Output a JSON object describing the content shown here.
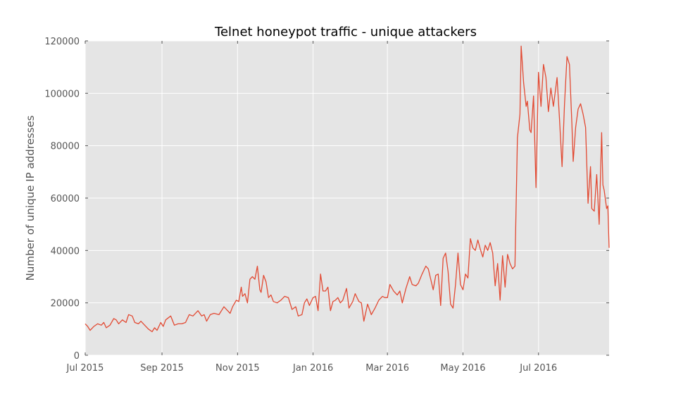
{
  "chart_data": {
    "type": "line",
    "title": "Telnet honeypot traffic - unique attackers",
    "xlabel": "",
    "ylabel": "Number of unique IP addresses",
    "x_range": [
      "2015-07-01",
      "2016-08-27"
    ],
    "x_tick_labels": [
      "Jul 2015",
      "Sep 2015",
      "Nov 2015",
      "Jan 2016",
      "Mar 2016",
      "May 2016",
      "Jul 2016"
    ],
    "x_tick_dates": [
      "2015-07-01",
      "2015-09-01",
      "2015-11-01",
      "2016-01-01",
      "2016-03-01",
      "2016-05-01",
      "2016-07-01"
    ],
    "y_ticks": [
      0,
      20000,
      40000,
      60000,
      80000,
      100000,
      120000
    ],
    "ylim": [
      0,
      120000
    ],
    "grid": true,
    "background": "#e5e5e5",
    "series": [
      {
        "color": "#e24a33",
        "points": [
          [
            "2015-07-01",
            12000
          ],
          [
            "2015-07-03",
            11000
          ],
          [
            "2015-07-05",
            9500
          ],
          [
            "2015-07-08",
            11000
          ],
          [
            "2015-07-11",
            12000
          ],
          [
            "2015-07-14",
            11500
          ],
          [
            "2015-07-16",
            12500
          ],
          [
            "2015-07-18",
            10500
          ],
          [
            "2015-07-21",
            11500
          ],
          [
            "2015-07-24",
            14000
          ],
          [
            "2015-07-26",
            13500
          ],
          [
            "2015-07-28",
            12000
          ],
          [
            "2015-07-31",
            13500
          ],
          [
            "2015-08-03",
            12500
          ],
          [
            "2015-08-05",
            15500
          ],
          [
            "2015-08-08",
            15000
          ],
          [
            "2015-08-10",
            12500
          ],
          [
            "2015-08-13",
            12000
          ],
          [
            "2015-08-15",
            13000
          ],
          [
            "2015-08-18",
            11500
          ],
          [
            "2015-08-21",
            10000
          ],
          [
            "2015-08-24",
            9000
          ],
          [
            "2015-08-26",
            10500
          ],
          [
            "2015-08-28",
            9500
          ],
          [
            "2015-08-31",
            12500
          ],
          [
            "2015-09-02",
            11000
          ],
          [
            "2015-09-04",
            13500
          ],
          [
            "2015-09-08",
            15000
          ],
          [
            "2015-09-11",
            11500
          ],
          [
            "2015-09-14",
            12000
          ],
          [
            "2015-09-17",
            12000
          ],
          [
            "2015-09-20",
            12500
          ],
          [
            "2015-09-23",
            15500
          ],
          [
            "2015-09-26",
            15000
          ],
          [
            "2015-09-30",
            17000
          ],
          [
            "2015-10-03",
            15000
          ],
          [
            "2015-10-05",
            15500
          ],
          [
            "2015-10-07",
            13000
          ],
          [
            "2015-10-10",
            15500
          ],
          [
            "2015-10-13",
            16000
          ],
          [
            "2015-10-17",
            15500
          ],
          [
            "2015-10-21",
            18500
          ],
          [
            "2015-10-24",
            17000
          ],
          [
            "2015-10-26",
            16000
          ],
          [
            "2015-10-28",
            18500
          ],
          [
            "2015-10-31",
            21000
          ],
          [
            "2015-11-02",
            20500
          ],
          [
            "2015-11-04",
            26000
          ],
          [
            "2015-11-05",
            22500
          ],
          [
            "2015-11-07",
            23500
          ],
          [
            "2015-11-09",
            20000
          ],
          [
            "2015-11-11",
            29000
          ],
          [
            "2015-11-13",
            30000
          ],
          [
            "2015-11-15",
            29000
          ],
          [
            "2015-11-17",
            34000
          ],
          [
            "2015-11-19",
            25000
          ],
          [
            "2015-11-20",
            24000
          ],
          [
            "2015-11-22",
            30500
          ],
          [
            "2015-11-24",
            28000
          ],
          [
            "2015-11-26",
            22000
          ],
          [
            "2015-11-28",
            23000
          ],
          [
            "2015-11-30",
            20500
          ],
          [
            "2015-12-03",
            20000
          ],
          [
            "2015-12-06",
            21000
          ],
          [
            "2015-12-09",
            22500
          ],
          [
            "2015-12-12",
            22000
          ],
          [
            "2015-12-15",
            17500
          ],
          [
            "2015-12-18",
            18500
          ],
          [
            "2015-12-20",
            15000
          ],
          [
            "2015-12-23",
            15500
          ],
          [
            "2015-12-25",
            20000
          ],
          [
            "2015-12-27",
            21500
          ],
          [
            "2015-12-29",
            19000
          ],
          [
            "2016-01-01",
            22000
          ],
          [
            "2016-01-03",
            22500
          ],
          [
            "2016-01-05",
            17000
          ],
          [
            "2016-01-07",
            31000
          ],
          [
            "2016-01-09",
            24500
          ],
          [
            "2016-01-11",
            24500
          ],
          [
            "2016-01-13",
            26000
          ],
          [
            "2016-01-15",
            17000
          ],
          [
            "2016-01-17",
            20500
          ],
          [
            "2016-01-19",
            21000
          ],
          [
            "2016-01-21",
            22000
          ],
          [
            "2016-01-23",
            20000
          ],
          [
            "2016-01-25",
            21000
          ],
          [
            "2016-01-28",
            25500
          ],
          [
            "2016-01-30",
            18000
          ],
          [
            "2016-02-02",
            20500
          ],
          [
            "2016-02-04",
            23500
          ],
          [
            "2016-02-07",
            20500
          ],
          [
            "2016-02-09",
            20000
          ],
          [
            "2016-02-11",
            13000
          ],
          [
            "2016-02-14",
            19500
          ],
          [
            "2016-02-17",
            15500
          ],
          [
            "2016-02-20",
            18000
          ],
          [
            "2016-02-23",
            21000
          ],
          [
            "2016-02-26",
            22500
          ],
          [
            "2016-02-28",
            22000
          ],
          [
            "2016-03-01",
            22000
          ],
          [
            "2016-03-03",
            27000
          ],
          [
            "2016-03-06",
            24500
          ],
          [
            "2016-03-09",
            23000
          ],
          [
            "2016-03-11",
            24500
          ],
          [
            "2016-03-13",
            20000
          ],
          [
            "2016-03-16",
            25500
          ],
          [
            "2016-03-19",
            30000
          ],
          [
            "2016-03-21",
            27000
          ],
          [
            "2016-03-24",
            26500
          ],
          [
            "2016-03-26",
            27500
          ],
          [
            "2016-03-29",
            31000
          ],
          [
            "2016-04-01",
            34000
          ],
          [
            "2016-04-03",
            33000
          ],
          [
            "2016-04-07",
            25000
          ],
          [
            "2016-04-09",
            30500
          ],
          [
            "2016-04-11",
            31000
          ],
          [
            "2016-04-13",
            19000
          ],
          [
            "2016-04-15",
            37000
          ],
          [
            "2016-04-17",
            39000
          ],
          [
            "2016-04-19",
            32000
          ],
          [
            "2016-04-21",
            19500
          ],
          [
            "2016-04-23",
            18000
          ],
          [
            "2016-04-25",
            27000
          ],
          [
            "2016-04-27",
            39000
          ],
          [
            "2016-04-29",
            27000
          ],
          [
            "2016-05-01",
            25000
          ],
          [
            "2016-05-03",
            31000
          ],
          [
            "2016-05-05",
            29500
          ],
          [
            "2016-05-07",
            44500
          ],
          [
            "2016-05-09",
            41000
          ],
          [
            "2016-05-11",
            40000
          ],
          [
            "2016-05-13",
            44000
          ],
          [
            "2016-05-15",
            40500
          ],
          [
            "2016-05-17",
            37500
          ],
          [
            "2016-05-19",
            42000
          ],
          [
            "2016-05-21",
            40000
          ],
          [
            "2016-05-23",
            43000
          ],
          [
            "2016-05-25",
            39000
          ],
          [
            "2016-05-27",
            26500
          ],
          [
            "2016-05-29",
            35000
          ],
          [
            "2016-05-31",
            21000
          ],
          [
            "2016-06-02",
            38000
          ],
          [
            "2016-06-04",
            26000
          ],
          [
            "2016-06-06",
            38500
          ],
          [
            "2016-06-08",
            35000
          ],
          [
            "2016-06-10",
            33000
          ],
          [
            "2016-06-12",
            34000
          ],
          [
            "2016-06-14",
            83000
          ],
          [
            "2016-06-16",
            92000
          ],
          [
            "2016-06-17",
            118000
          ],
          [
            "2016-06-19",
            104000
          ],
          [
            "2016-06-21",
            95000
          ],
          [
            "2016-06-22",
            97000
          ],
          [
            "2016-06-24",
            86000
          ],
          [
            "2016-06-25",
            85000
          ],
          [
            "2016-06-27",
            99000
          ],
          [
            "2016-06-29",
            64000
          ],
          [
            "2016-07-01",
            108000
          ],
          [
            "2016-07-03",
            95000
          ],
          [
            "2016-07-05",
            111000
          ],
          [
            "2016-07-07",
            106000
          ],
          [
            "2016-07-09",
            93000
          ],
          [
            "2016-07-11",
            102000
          ],
          [
            "2016-07-13",
            95000
          ],
          [
            "2016-07-16",
            106000
          ],
          [
            "2016-07-18",
            90000
          ],
          [
            "2016-07-20",
            72000
          ],
          [
            "2016-07-22",
            96000
          ],
          [
            "2016-07-24",
            114000
          ],
          [
            "2016-07-26",
            111000
          ],
          [
            "2016-07-28",
            88000
          ],
          [
            "2016-07-29",
            74000
          ],
          [
            "2016-07-31",
            87000
          ],
          [
            "2016-08-02",
            94000
          ],
          [
            "2016-08-04",
            96000
          ],
          [
            "2016-08-06",
            92000
          ],
          [
            "2016-08-08",
            87000
          ],
          [
            "2016-08-10",
            58000
          ],
          [
            "2016-08-12",
            72000
          ],
          [
            "2016-08-13",
            56000
          ],
          [
            "2016-08-15",
            55000
          ],
          [
            "2016-08-17",
            69000
          ],
          [
            "2016-08-19",
            50000
          ],
          [
            "2016-08-21",
            85000
          ],
          [
            "2016-08-22",
            65000
          ],
          [
            "2016-08-23",
            63000
          ],
          [
            "2016-08-25",
            56000
          ],
          [
            "2016-08-26",
            57000
          ],
          [
            "2016-08-27",
            41000
          ]
        ]
      }
    ]
  }
}
